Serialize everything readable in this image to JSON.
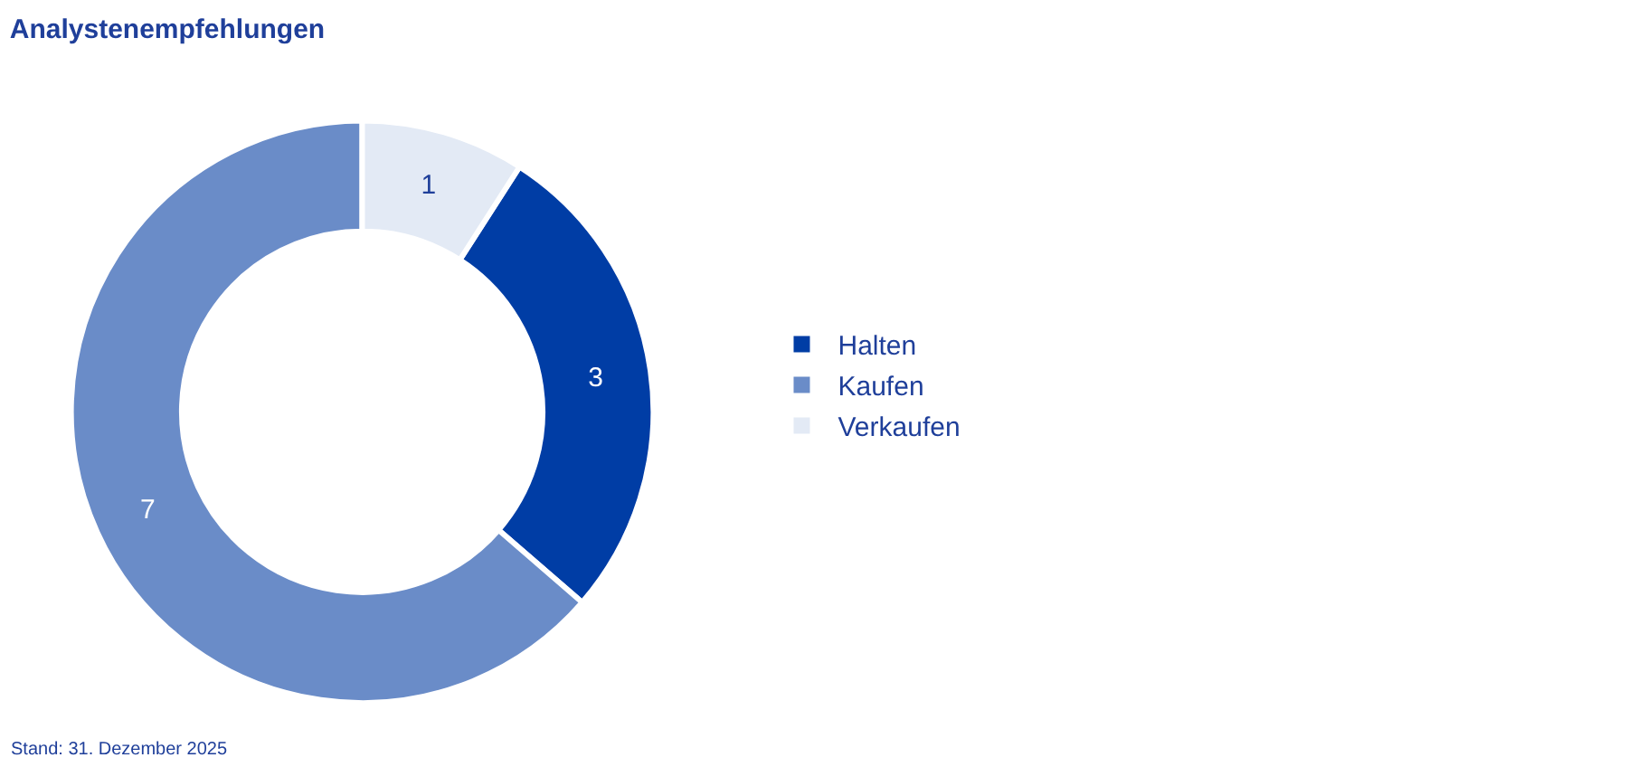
{
  "chart_data": {
    "type": "donut",
    "title": "Analystenempfehlungen",
    "categories": [
      "Halten",
      "Kaufen",
      "Verkaufen"
    ],
    "values": [
      3,
      7,
      1
    ],
    "colors": [
      "#003da5",
      "#6a8cc8",
      "#e3eaf5"
    ],
    "data_labels": true,
    "legend": "right",
    "annotations": [
      "Stand: 31. Dezember 2025"
    ]
  }
}
